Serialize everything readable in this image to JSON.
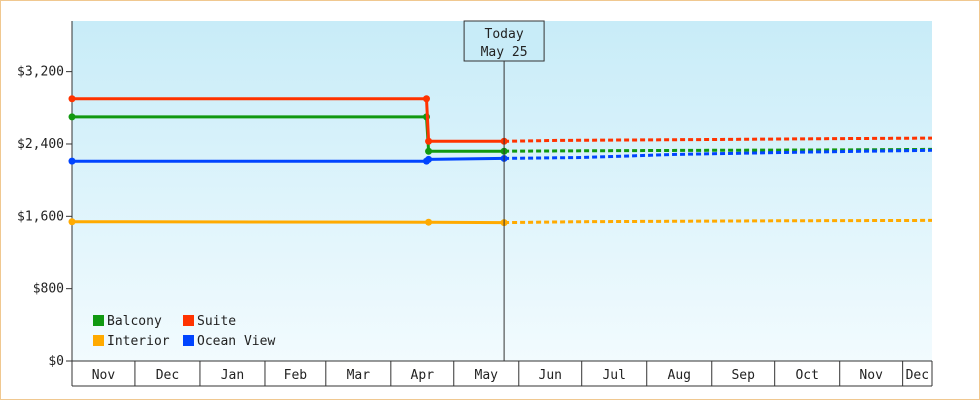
{
  "chart_data": {
    "type": "line",
    "y_ticks": [
      "$0",
      "$800",
      "$1,600",
      "$2,400",
      "$3,200"
    ],
    "y_tick_values": [
      0,
      800,
      1600,
      2400,
      3200
    ],
    "ylim": [
      0,
      3760
    ],
    "months": [
      "Nov",
      "Dec",
      "Jan",
      "Feb",
      "Mar",
      "Apr",
      "May",
      "Jun",
      "Jul",
      "Aug",
      "Sep",
      "Oct",
      "Nov",
      "Dec"
    ],
    "month_starts": [
      "2023-11-01",
      "2023-12-01",
      "2024-01-01",
      "2024-02-01",
      "2024-03-01",
      "2024-04-01",
      "2024-05-01",
      "2024-06-01",
      "2024-07-01",
      "2024-08-01",
      "2024-09-01",
      "2024-10-01",
      "2024-11-01",
      "2024-12-01"
    ],
    "x_range": [
      "2023-11-01",
      "2024-12-15"
    ],
    "today": {
      "line1": "Today",
      "line2": "May 25",
      "date": "2024-05-25"
    },
    "grid": "none",
    "legend": {
      "placement": "bottom-left"
    },
    "series": [
      {
        "name": "Balcony",
        "color": "#119911",
        "actual": [
          [
            "2023-11-01",
            2700
          ],
          [
            "2024-04-18",
            2700
          ],
          [
            "2024-04-19",
            2320
          ],
          [
            "2024-05-25",
            2320
          ]
        ],
        "forecast": [
          [
            "2024-05-25",
            2320
          ],
          [
            "2024-07-01",
            2325
          ],
          [
            "2024-09-01",
            2330
          ],
          [
            "2024-11-01",
            2335
          ],
          [
            "2024-12-15",
            2340
          ]
        ]
      },
      {
        "name": "Suite",
        "color": "#ff3300",
        "actual": [
          [
            "2023-11-01",
            2900
          ],
          [
            "2024-04-18",
            2900
          ],
          [
            "2024-04-19",
            2430
          ],
          [
            "2024-05-25",
            2430
          ]
        ],
        "forecast": [
          [
            "2024-05-25",
            2430
          ],
          [
            "2024-06-20",
            2440
          ],
          [
            "2024-09-01",
            2450
          ],
          [
            "2024-11-01",
            2460
          ],
          [
            "2024-12-15",
            2465
          ]
        ]
      },
      {
        "name": "Interior",
        "color": "#ffaa00",
        "actual": [
          [
            "2023-11-01",
            1540
          ],
          [
            "2024-04-19",
            1535
          ],
          [
            "2024-05-25",
            1530
          ]
        ],
        "forecast": [
          [
            "2024-05-25",
            1530
          ],
          [
            "2024-07-01",
            1540
          ],
          [
            "2024-10-01",
            1550
          ],
          [
            "2024-12-15",
            1555
          ]
        ]
      },
      {
        "name": "Ocean View",
        "color": "#0044ff",
        "actual": [
          [
            "2023-11-01",
            2210
          ],
          [
            "2024-04-18",
            2210
          ],
          [
            "2024-04-19",
            2230
          ],
          [
            "2024-05-25",
            2240
          ]
        ],
        "forecast": [
          [
            "2024-05-25",
            2240
          ],
          [
            "2024-07-01",
            2250
          ],
          [
            "2024-08-15",
            2285
          ],
          [
            "2024-10-15",
            2310
          ],
          [
            "2024-12-15",
            2330
          ]
        ]
      }
    ]
  }
}
